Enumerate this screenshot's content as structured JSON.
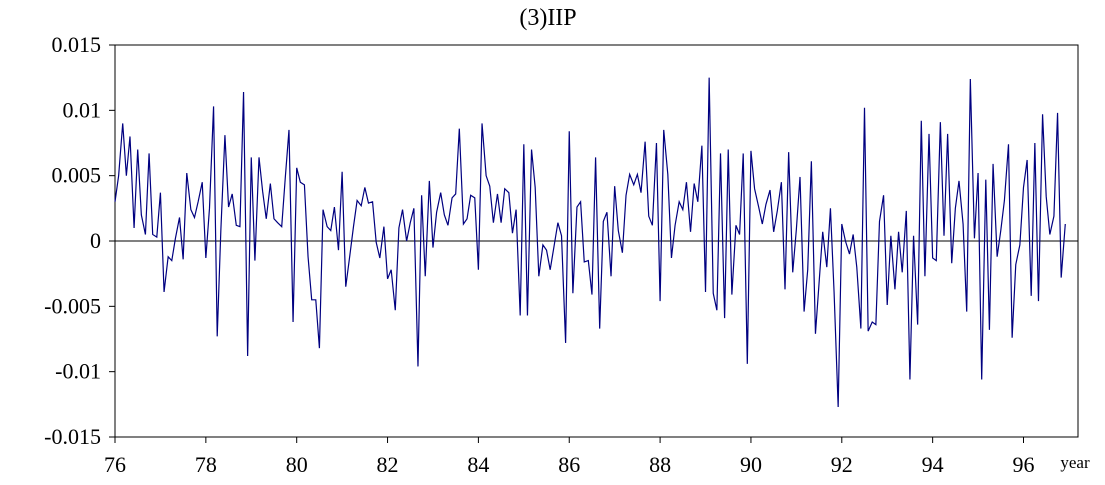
{
  "chart_data": {
    "type": "line",
    "title": "(3)IIP",
    "x_label": "year",
    "color": "#000080",
    "x": [
      76,
      76.08,
      76.17,
      76.25,
      76.33,
      76.42,
      76.5,
      76.58,
      76.67,
      76.75,
      76.83,
      76.92,
      77,
      77.08,
      77.17,
      77.25,
      77.33,
      77.42,
      77.5,
      77.58,
      77.67,
      77.75,
      77.83,
      77.92,
      78,
      78.08,
      78.17,
      78.25,
      78.33,
      78.42,
      78.5,
      78.58,
      78.67,
      78.75,
      78.83,
      78.92,
      79,
      79.08,
      79.17,
      79.25,
      79.33,
      79.42,
      79.5,
      79.58,
      79.67,
      79.75,
      79.83,
      79.92,
      80,
      80.08,
      80.17,
      80.25,
      80.33,
      80.42,
      80.5,
      80.58,
      80.67,
      80.75,
      80.83,
      80.92,
      81,
      81.08,
      81.17,
      81.25,
      81.33,
      81.42,
      81.5,
      81.58,
      81.67,
      81.75,
      81.83,
      81.92,
      82,
      82.08,
      82.17,
      82.25,
      82.33,
      82.42,
      82.5,
      82.58,
      82.67,
      82.75,
      82.83,
      82.92,
      83,
      83.08,
      83.17,
      83.25,
      83.33,
      83.42,
      83.5,
      83.58,
      83.67,
      83.75,
      83.83,
      83.92,
      84,
      84.08,
      84.17,
      84.25,
      84.33,
      84.42,
      84.5,
      84.58,
      84.67,
      84.75,
      84.83,
      84.92,
      85,
      85.08,
      85.17,
      85.25,
      85.33,
      85.42,
      85.5,
      85.58,
      85.67,
      85.75,
      85.83,
      85.92,
      86,
      86.08,
      86.17,
      86.25,
      86.33,
      86.42,
      86.5,
      86.58,
      86.67,
      86.75,
      86.83,
      86.92,
      87,
      87.08,
      87.17,
      87.25,
      87.33,
      87.42,
      87.5,
      87.58,
      87.67,
      87.75,
      87.83,
      87.92,
      88,
      88.08,
      88.17,
      88.25,
      88.33,
      88.42,
      88.5,
      88.58,
      88.67,
      88.75,
      88.83,
      88.92,
      89,
      89.08,
      89.17,
      89.25,
      89.33,
      89.42,
      89.5,
      89.58,
      89.67,
      89.75,
      89.83,
      89.92,
      90,
      90.08,
      90.17,
      90.25,
      90.33,
      90.42,
      90.5,
      90.58,
      90.67,
      90.75,
      90.83,
      90.92,
      91,
      91.08,
      91.17,
      91.25,
      91.33,
      91.42,
      91.5,
      91.58,
      91.67,
      91.75,
      91.83,
      91.92,
      92,
      92.08,
      92.17,
      92.25,
      92.33,
      92.42,
      92.5,
      92.58,
      92.67,
      92.75,
      92.83,
      92.92,
      93,
      93.08,
      93.17,
      93.25,
      93.33,
      93.42,
      93.5,
      93.58,
      93.67,
      93.75,
      93.83,
      93.92,
      94,
      94.08,
      94.17,
      94.25,
      94.33,
      94.42,
      94.5,
      94.58,
      94.67,
      94.75,
      94.83,
      94.92,
      95,
      95.08,
      95.17,
      95.25,
      95.33,
      95.42,
      95.5,
      95.58,
      95.67,
      95.75,
      95.83,
      95.92,
      96,
      96.08,
      96.17,
      96.25,
      96.33,
      96.42,
      96.5,
      96.58,
      96.67,
      96.75,
      96.83,
      96.92
    ],
    "values": [
      0.003,
      0.005,
      0.009,
      0.005,
      0.008,
      0.001,
      0.007,
      0.002,
      0.0005,
      0.0067,
      0.0005,
      0.0003,
      0.0037,
      -0.0039,
      -0.0012,
      -0.0015,
      0.0002,
      0.0018,
      -0.0014,
      0.0052,
      0.0024,
      0.0018,
      0.003,
      0.0045,
      -0.0013,
      0.0025,
      0.0103,
      -0.0073,
      0.0008,
      0.0081,
      0.0026,
      0.0036,
      0.0012,
      0.0011,
      0.0114,
      -0.0088,
      0.0064,
      -0.0015,
      0.0064,
      0.0038,
      0.0017,
      0.0044,
      0.0017,
      0.0014,
      0.0011,
      0.0049,
      0.0085,
      -0.0062,
      0.0056,
      0.0045,
      0.0043,
      -0.0012,
      -0.0045,
      -0.0045,
      -0.0082,
      0.0024,
      0.0011,
      0.0008,
      0.0026,
      -0.0007,
      0.0053,
      -0.0035,
      -0.0011,
      0.0011,
      0.0031,
      0.0027,
      0.0041,
      0.0029,
      0.003,
      -0.0001,
      -0.0013,
      0.0011,
      -0.0029,
      -0.0022,
      -0.0053,
      0.001,
      0.0024,
      0,
      0.0014,
      0.0025,
      -0.0096,
      0.0035,
      -0.0027,
      0.0046,
      -0.0005,
      0.0022,
      0.0037,
      0.002,
      0.0012,
      0.0033,
      0.0036,
      0.0086,
      0.0013,
      0.0017,
      0.0035,
      0.0033,
      -0.0022,
      0.009,
      0.005,
      0.0042,
      0.0014,
      0.0036,
      0.0014,
      0.004,
      0.0037,
      0.0006,
      0.0024,
      -0.0057,
      0.0074,
      -0.0057,
      0.007,
      0.0041,
      -0.0027,
      -0.0003,
      -0.0007,
      -0.0022,
      -0.0003,
      0.0014,
      0.0004,
      -0.0078,
      0.0084,
      -0.004,
      0.0026,
      0.003,
      -0.0016,
      -0.0015,
      -0.0041,
      0.0064,
      -0.0067,
      0.0015,
      0.0022,
      -0.0027,
      0.0042,
      0.0008,
      -0.0009,
      0.0035,
      0.0051,
      0.0043,
      0.0051,
      0.0037,
      0.0076,
      0.0019,
      0.0012,
      0.0075,
      -0.0046,
      0.0085,
      0.0051,
      -0.0013,
      0.0012,
      0.003,
      0.0024,
      0.0045,
      0.0007,
      0.0044,
      0.003,
      0.0073,
      -0.0039,
      0.0125,
      -0.004,
      -0.0053,
      0.0067,
      -0.0059,
      0.007,
      -0.0041,
      0.0012,
      0.0005,
      0.0067,
      -0.0094,
      0.0069,
      0.004,
      0.0026,
      0.0013,
      0.0028,
      0.0039,
      0.0007,
      0.0023,
      0.0045,
      -0.0037,
      0.0068,
      -0.0024,
      0.0009,
      0.0049,
      -0.0054,
      -0.0022,
      0.0061,
      -0.0071,
      -0.0032,
      0.0007,
      -0.002,
      0.0025,
      -0.0039,
      -0.0127,
      0.0013,
      0,
      -0.001,
      0.0005,
      -0.002,
      -0.0067,
      0.0102,
      -0.0069,
      -0.0062,
      -0.0064,
      0.0015,
      0.0035,
      -0.0049,
      0.0004,
      -0.0037,
      0.0007,
      -0.0024,
      0.0023,
      -0.0106,
      0.0004,
      -0.0064,
      0.0092,
      -0.0027,
      0.0082,
      -0.0013,
      -0.0015,
      0.0091,
      0.0004,
      0.0082,
      -0.0017,
      0.0025,
      0.0046,
      0.0013,
      -0.0054,
      0.0124,
      0.0002,
      0.0052,
      -0.0106,
      0.0047,
      -0.0068,
      0.0059,
      -0.0012,
      0.0008,
      0.0031,
      0.0074,
      -0.0074,
      -0.0018,
      -0.0003,
      0.0041,
      0.0062,
      -0.0042,
      0.0075,
      -0.0046,
      0.0097,
      0.0034,
      0.0005,
      0.0019,
      0.0098,
      -0.0028,
      0.0013
    ],
    "xlim": [
      76,
      97.2
    ],
    "xticks": [
      76,
      78,
      80,
      82,
      84,
      86,
      88,
      90,
      92,
      94,
      96
    ],
    "ylim": [
      -0.015,
      0.015
    ],
    "yticks": [
      -0.015,
      -0.01,
      -0.005,
      0,
      0.005,
      0.01,
      0.015
    ],
    "grid": false
  }
}
